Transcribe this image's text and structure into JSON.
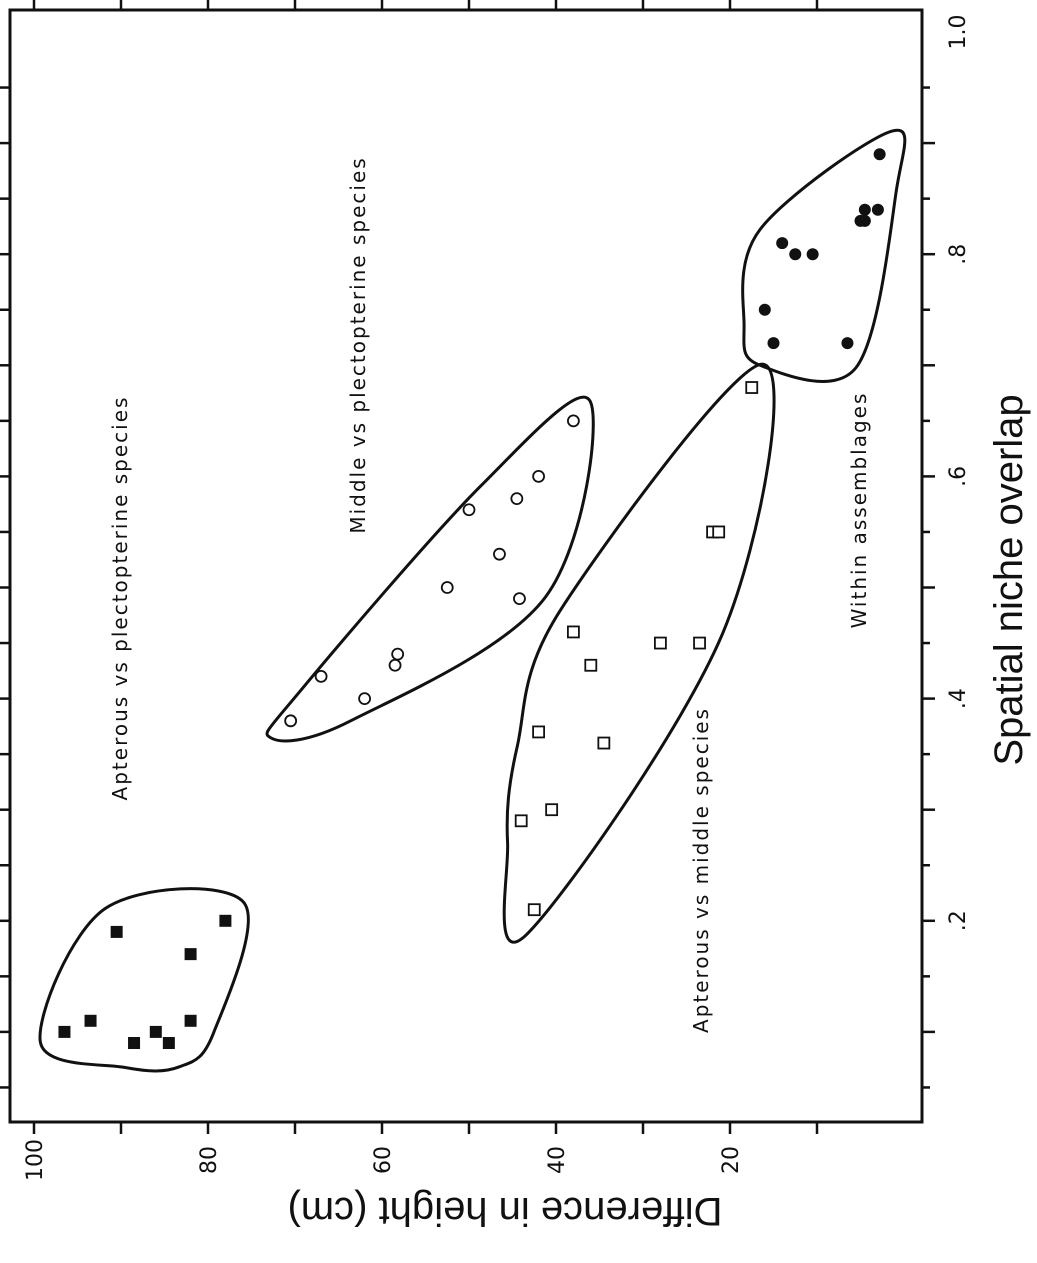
{
  "chart_data": {
    "type": "scatter",
    "title": "",
    "xlabel": "Spatial niche overlap",
    "ylabel": "Difference in height (cm)",
    "xlim": [
      0,
      1.0
    ],
    "ylim": [
      0,
      100
    ],
    "x_ticks": [
      0.2,
      0.4,
      0.6,
      0.8,
      1.0
    ],
    "x_tick_labels": [
      ".2",
      ".4",
      ".6",
      ".8",
      "1.0"
    ],
    "y_ticks": [
      20,
      40,
      60,
      80,
      100
    ],
    "y_tick_labels": [
      "20",
      "40",
      "60",
      "80",
      "100"
    ],
    "grid": false,
    "orientation": "rotated-90-clockwise",
    "series": [
      {
        "name": "Apterous vs plectopterine species",
        "marker": "filled-square",
        "points": [
          {
            "x": 0.1,
            "y": 96.5
          },
          {
            "x": 0.11,
            "y": 93.5
          },
          {
            "x": 0.19,
            "y": 90.5
          },
          {
            "x": 0.09,
            "y": 88.5
          },
          {
            "x": 0.1,
            "y": 86.0
          },
          {
            "x": 0.09,
            "y": 84.5
          },
          {
            "x": 0.11,
            "y": 82.0
          },
          {
            "x": 0.17,
            "y": 82.0
          },
          {
            "x": 0.2,
            "y": 78.0
          }
        ]
      },
      {
        "name": "Middle vs plectopterine species",
        "marker": "open-circle",
        "points": [
          {
            "x": 0.38,
            "y": 70.5
          },
          {
            "x": 0.42,
            "y": 67.0
          },
          {
            "x": 0.4,
            "y": 62.0
          },
          {
            "x": 0.43,
            "y": 58.5
          },
          {
            "x": 0.44,
            "y": 58.2
          },
          {
            "x": 0.5,
            "y": 52.5
          },
          {
            "x": 0.57,
            "y": 50.0
          },
          {
            "x": 0.53,
            "y": 46.5
          },
          {
            "x": 0.58,
            "y": 44.5
          },
          {
            "x": 0.49,
            "y": 44.2
          },
          {
            "x": 0.6,
            "y": 42.0
          },
          {
            "x": 0.65,
            "y": 38.0
          }
        ]
      },
      {
        "name": "Apterous vs middle species",
        "marker": "open-square",
        "points": [
          {
            "x": 0.21,
            "y": 42.5
          },
          {
            "x": 0.29,
            "y": 44.0
          },
          {
            "x": 0.3,
            "y": 40.5
          },
          {
            "x": 0.37,
            "y": 42.0
          },
          {
            "x": 0.36,
            "y": 34.5
          },
          {
            "x": 0.43,
            "y": 36.0
          },
          {
            "x": 0.46,
            "y": 38.0
          },
          {
            "x": 0.45,
            "y": 28.0
          },
          {
            "x": 0.45,
            "y": 23.5
          },
          {
            "x": 0.55,
            "y": 22.0
          },
          {
            "x": 0.55,
            "y": 21.3
          },
          {
            "x": 0.68,
            "y": 17.5
          }
        ]
      },
      {
        "name": "Within assemblages",
        "marker": "filled-circle",
        "points": [
          {
            "x": 0.75,
            "y": 16.0
          },
          {
            "x": 0.72,
            "y": 15.0
          },
          {
            "x": 0.81,
            "y": 14.0
          },
          {
            "x": 0.8,
            "y": 12.5
          },
          {
            "x": 0.8,
            "y": 10.5
          },
          {
            "x": 0.72,
            "y": 6.5
          },
          {
            "x": 0.83,
            "y": 5.0
          },
          {
            "x": 0.83,
            "y": 4.5
          },
          {
            "x": 0.84,
            "y": 4.5
          },
          {
            "x": 0.84,
            "y": 3.0
          },
          {
            "x": 0.89,
            "y": 2.8
          }
        ]
      }
    ]
  }
}
